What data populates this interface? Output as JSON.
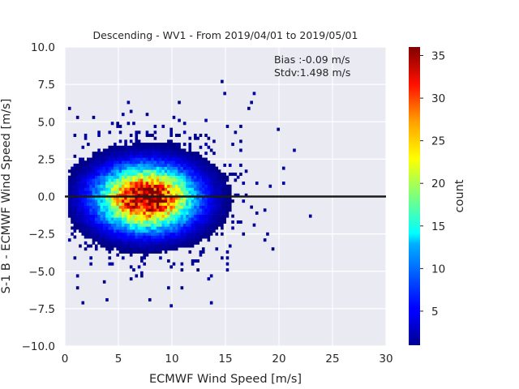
{
  "chart_data": {
    "type": "heatmap",
    "title": "Descending - WV1 - From 2019/04/01 to 2019/05/01",
    "xlabel": "ECMWF Wind Speed [m/s]",
    "ylabel": "S-1 B - ECMWF Wind Speed [m/s]",
    "xlim": [
      0,
      30
    ],
    "ylim": [
      -10,
      10
    ],
    "x_ticks": [
      "0",
      "5",
      "10",
      "15",
      "20",
      "25",
      "30"
    ],
    "y_ticks": [
      "10.0",
      "7.5",
      "5.0",
      "2.5",
      "0.0",
      "−2.5",
      "−5.0",
      "−7.5",
      "−10.0"
    ],
    "grid": true,
    "background_color": "#eaeaf2",
    "colormap": "jet",
    "zero_line": {
      "y": 0,
      "color": "#1a1a1a"
    },
    "annotations": [
      "Bias :-0.09 m/s",
      "Stdv:1.498 m/s"
    ],
    "colorbar": {
      "label": "count",
      "range": [
        1,
        36
      ],
      "ticks": [
        "5",
        "10",
        "15",
        "20",
        "25",
        "30",
        "35"
      ]
    },
    "density_model": {
      "peak_count": 36,
      "peak_location": {
        "x": 7.5,
        "y": -0.2
      },
      "spread": {
        "x": 3.0,
        "y": 1.4
      },
      "x_extent": [
        0.3,
        25.3
      ],
      "y_extent": [
        -7.8,
        9.3
      ]
    }
  }
}
